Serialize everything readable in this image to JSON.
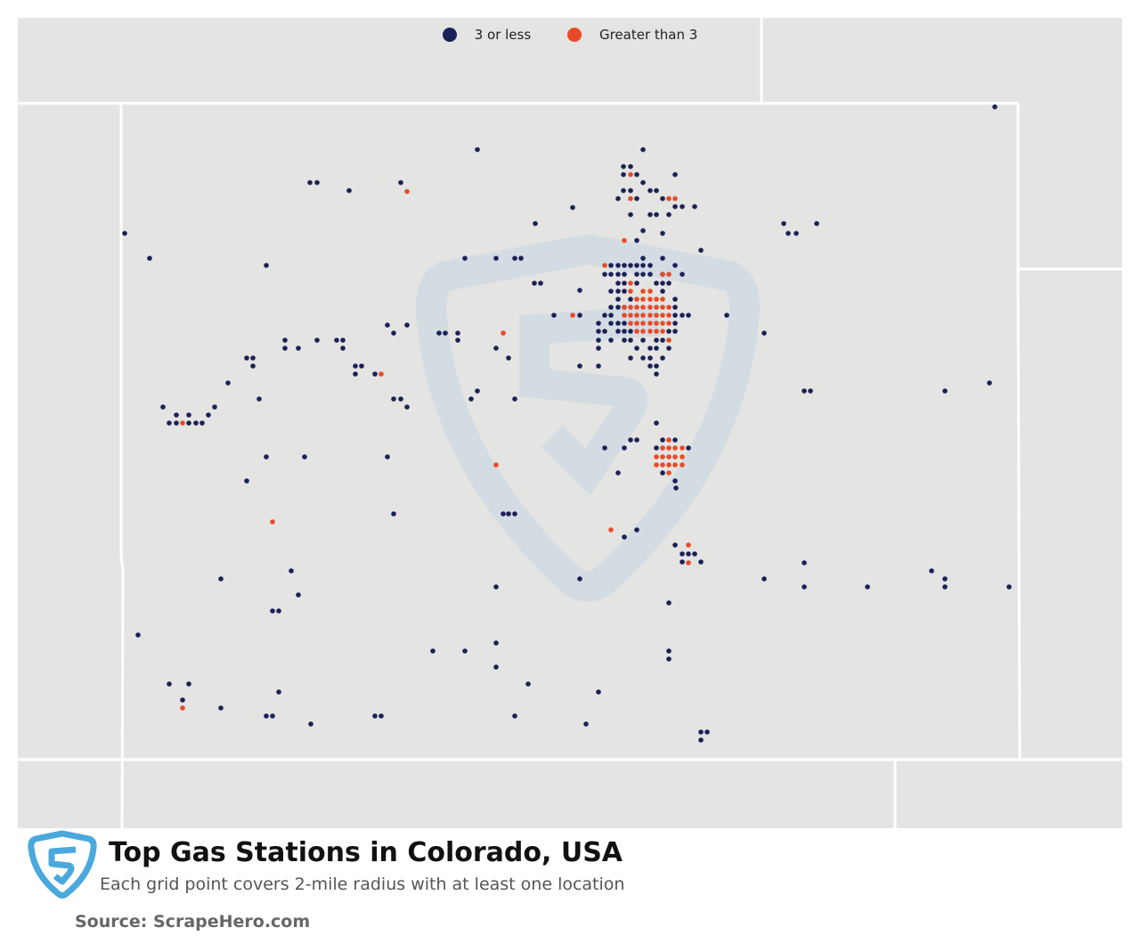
{
  "legend": {
    "low": {
      "label": "3 or less",
      "color": "#1b2157"
    },
    "high": {
      "label": "Greater than 3",
      "color": "#e84a27"
    }
  },
  "footer": {
    "title": "Top Gas Stations in Colorado, USA",
    "subtitle": "Each grid point covers 2-mile radius with at least one location",
    "source": "Source: ScrapeHero.com"
  },
  "map": {
    "land_color": "#e4e4e2",
    "border_color": "#ffffff",
    "watermark_color": "#d6dfe6",
    "logo_color": "#4aa8dc"
  }
}
